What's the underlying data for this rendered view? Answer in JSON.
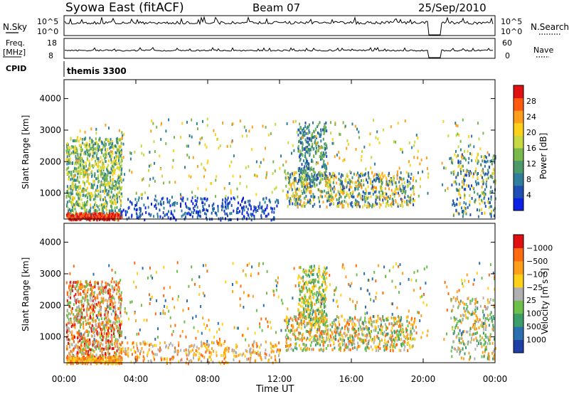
{
  "header": {
    "station": "Syowa East (fitACF)",
    "beam": "Beam 07",
    "date": "25/Sep/2010"
  },
  "status_panels": {
    "nsky_label": "N.Sky",
    "nsky_ticks": [
      "10^5",
      "10^0"
    ],
    "nsearch_label": "N.Search",
    "nsearch_ticks": [
      "10^5",
      "10^0"
    ],
    "freq_label_line1": "Freq.",
    "freq_label_line2": "[MHz]",
    "freq_ticks": [
      "18",
      "8"
    ],
    "nave_label": "Nave",
    "nave_ticks": [
      "60",
      "0"
    ],
    "cpid_label": "CPID",
    "cpid_value": "themis 3300"
  },
  "chart_data": [
    {
      "type": "heatmap",
      "name": "power",
      "ylabel": "Slant Range [km]",
      "xlabel": "",
      "yticks": [
        1000,
        2000,
        3000,
        4000
      ],
      "ylim": [
        180,
        4600
      ],
      "xlim_hours": [
        0,
        24
      ],
      "colorbar": {
        "label": "Power [dB]",
        "ticks": [
          "4",
          "8",
          "12",
          "16",
          "20",
          "24",
          "28"
        ],
        "colors": [
          "#0b1fe6",
          "#1f4fb4",
          "#2f7f9c",
          "#4c9a6a",
          "#79b84d",
          "#c6d943",
          "#ffd21a",
          "#ff9e1a",
          "#ff5a10",
          "#e01010"
        ]
      },
      "data_gap_hours": [
        20.25,
        21.0
      ]
    },
    {
      "type": "heatmap",
      "name": "velocity",
      "ylabel": "Slant Range [km]",
      "xlabel": "Time UT",
      "yticks": [
        1000,
        2000,
        3000,
        4000
      ],
      "ylim": [
        180,
        4600
      ],
      "xlim_hours": [
        0,
        24
      ],
      "xtick_labels": [
        "00:00",
        "04:00",
        "08:00",
        "12:00",
        "16:00",
        "20:00",
        "00:00"
      ],
      "colorbar": {
        "label": "Velocity [m s⁻¹]",
        "ticks": [
          "1000",
          "500",
          "100",
          "25",
          "−25",
          "−100",
          "−500",
          "−1000"
        ],
        "colors": [
          "#1d3fa6",
          "#2a6fb0",
          "#3a9d6a",
          "#6cc04a",
          "#b0b0b0",
          "#ffd21a",
          "#ff9e1a",
          "#ff6a10",
          "#e01010"
        ]
      },
      "data_gap_hours": [
        20.25,
        21.0
      ]
    }
  ]
}
